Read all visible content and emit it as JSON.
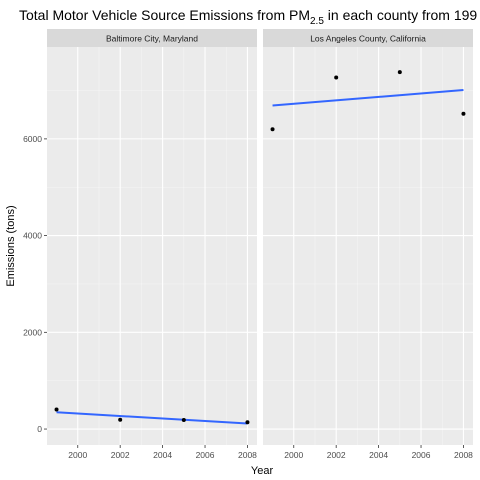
{
  "chart_data": {
    "type": "scatter",
    "title": {
      "prefix": "Total Motor Vehicle Source Emissions from PM",
      "subscript": "2.5",
      "suffix": " in each county from 199"
    },
    "xlabel": "Year",
    "ylabel": "Emissions (tons)",
    "xlim": [
      1998.55,
      2008.45
    ],
    "ylim": [
      -330,
      7900
    ],
    "x_ticks": [
      2000,
      2002,
      2004,
      2006,
      2008
    ],
    "y_ticks": [
      0,
      2000,
      4000,
      6000
    ],
    "grid": true,
    "facets": [
      {
        "name": "Baltimore City, Maryland",
        "points": [
          {
            "x": 1999,
            "y": 403
          },
          {
            "x": 2002,
            "y": 193
          },
          {
            "x": 2005,
            "y": 186
          },
          {
            "x": 2008,
            "y": 140
          }
        ],
        "fit": {
          "x": [
            1999,
            2008
          ],
          "y": [
            346,
            115
          ]
        }
      },
      {
        "name": "Los Angeles County, California",
        "points": [
          {
            "x": 1999,
            "y": 6200
          },
          {
            "x": 2002,
            "y": 7270
          },
          {
            "x": 2005,
            "y": 7380
          },
          {
            "x": 2008,
            "y": 6520
          }
        ],
        "fit": {
          "x": [
            1999,
            2008
          ],
          "y": [
            6690,
            7010
          ]
        }
      }
    ],
    "colors": {
      "panel_bg": "#ebebeb",
      "strip_bg": "#d9d9d9",
      "grid_major": "#ffffff",
      "point": "#000000",
      "fit_line": "#3366ff",
      "tick_label": "#4d4d4d",
      "tick_mark": "#333333"
    }
  }
}
